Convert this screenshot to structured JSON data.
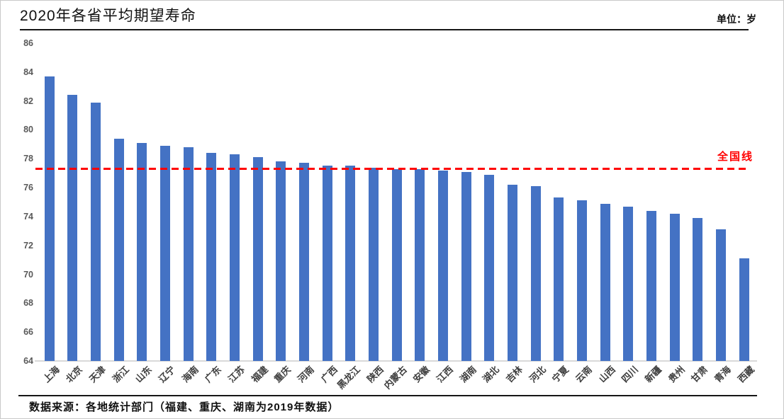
{
  "header": {
    "title": "2020年各省平均期望寿命",
    "unit_label": "单位：岁"
  },
  "chart_data": {
    "type": "bar",
    "title": "2020年各省平均期望寿命",
    "unit": "岁",
    "categories": [
      "上海",
      "北京",
      "天津",
      "浙江",
      "山东",
      "辽宁",
      "海南",
      "广东",
      "江苏",
      "福建",
      "重庆",
      "河南",
      "广西",
      "黑龙江",
      "陕西",
      "内蒙古",
      "安徽",
      "江西",
      "湖南",
      "湖北",
      "吉林",
      "河北",
      "宁夏",
      "云南",
      "山西",
      "四川",
      "新疆",
      "贵州",
      "甘肃",
      "青海",
      "西藏"
    ],
    "values": [
      83.7,
      82.4,
      81.9,
      79.4,
      79.1,
      78.9,
      78.8,
      78.4,
      78.3,
      78.1,
      77.8,
      77.7,
      77.5,
      77.5,
      77.4,
      77.3,
      77.3,
      77.2,
      77.1,
      76.9,
      76.2,
      76.1,
      75.3,
      75.1,
      74.9,
      74.7,
      74.4,
      74.2,
      73.9,
      73.1,
      71.1
    ],
    "national_line": {
      "label": "全国线",
      "value": 77.3
    },
    "ylim": [
      64,
      86
    ],
    "ytick_interval": 2,
    "yticks": [
      86,
      84,
      82,
      80,
      78,
      76,
      74,
      72,
      70,
      68,
      66,
      64
    ],
    "grid": "off",
    "legend": "none",
    "bar_color": "#4472C4",
    "line_color": "#FF0000"
  },
  "footer": {
    "source": "数据来源：各地统计部门（福建、重庆、湖南为2019年数据）"
  }
}
